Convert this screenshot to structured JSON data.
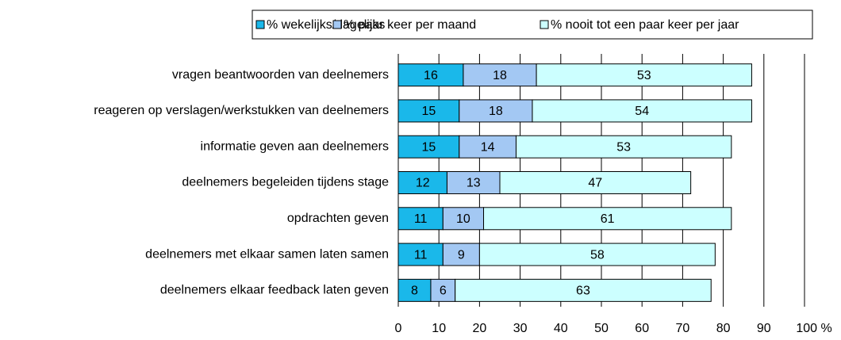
{
  "chart_data": {
    "type": "stacked_bar_horizontal",
    "categories": [
      "vragen beantwoorden van deelnemers",
      "reageren op verslagen/werkstukken van deelnemers",
      "informatie geven aan deelnemers",
      "deelnemers begeleiden tijdens stage",
      "opdrachten geven",
      "deelnemers met elkaar samen laten samen",
      "deelnemers elkaar feedback laten geven"
    ],
    "series": [
      {
        "name": "% wekelijks/dagelijks",
        "color": "#1ab8ea",
        "values": [
          16,
          15,
          15,
          12,
          11,
          11,
          8
        ]
      },
      {
        "name": "% paar keer per maand",
        "color": "#a3c8f3",
        "values": [
          18,
          18,
          14,
          13,
          10,
          9,
          6
        ]
      },
      {
        "name": "% nooit tot een paar keer per jaar",
        "color": "#ccffff",
        "values": [
          53,
          54,
          53,
          47,
          61,
          58,
          63
        ]
      }
    ],
    "xlim": [
      0,
      100
    ],
    "xticks": [
      0,
      10,
      20,
      30,
      40,
      50,
      60,
      70,
      80,
      90,
      {
        "value": 100,
        "label": "100 %"
      }
    ],
    "grid": true,
    "legend": "top"
  }
}
